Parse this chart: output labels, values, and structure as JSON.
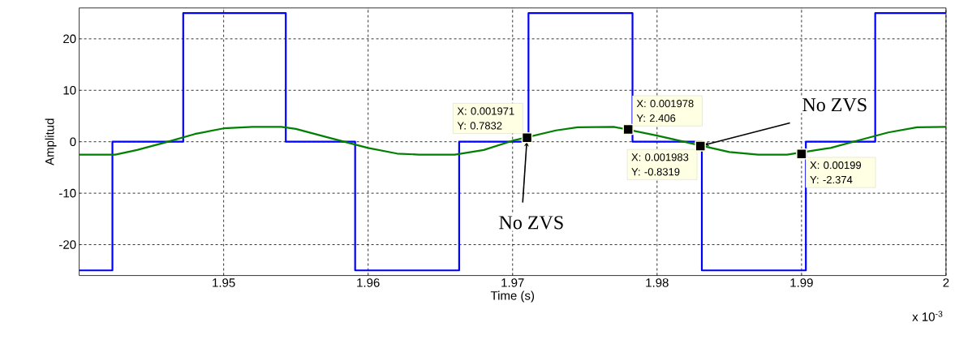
{
  "chart_data": {
    "type": "line",
    "xlabel": "Time (s)",
    "ylabel": "Amplitud",
    "xlim": [
      1.94,
      2.0
    ],
    "ylim": [
      -26,
      26
    ],
    "xticks": [
      1.95,
      1.96,
      1.97,
      1.98,
      1.99,
      2
    ],
    "yticks": [
      -20,
      -10,
      0,
      10,
      20
    ],
    "grid": true,
    "series": [
      {
        "type": "step",
        "color": "#0000ff",
        "x": [
          1.94,
          1.9423,
          1.9472,
          1.9543,
          1.9591,
          1.9663,
          1.9711,
          1.9783,
          1.9831,
          1.9903,
          1.9951,
          2.0
        ],
        "values": [
          -25,
          0,
          25,
          0,
          -25,
          0,
          25,
          0,
          -25,
          0,
          25,
          25
        ]
      },
      {
        "color": "#008000",
        "x": [
          1.94,
          1.9425,
          1.944,
          1.946,
          1.948,
          1.95,
          1.952,
          1.954,
          1.955,
          1.957,
          1.9585,
          1.96,
          1.962,
          1.9635,
          1.966,
          1.968,
          1.97,
          1.973,
          1.9745,
          1.977,
          1.98,
          1.985,
          1.987,
          1.989,
          1.992,
          1.994,
          1.996,
          1.998,
          2.0
        ],
        "values": [
          -2.5,
          -2.5,
          -1.6,
          -0.1,
          1.5,
          2.6,
          2.9,
          2.9,
          2.5,
          1.0,
          -0.1,
          -1.2,
          -2.3,
          -2.5,
          -2.5,
          -1.6,
          0.2,
          2.2,
          2.8,
          2.9,
          1.2,
          -2.0,
          -2.5,
          -2.5,
          -1.2,
          0.3,
          1.8,
          2.8,
          2.9
        ]
      },
      {
        "type": "scatter",
        "color": "#000000",
        "marker": "square",
        "x": [
          1.971,
          1.978,
          1.983,
          1.99
        ],
        "values": [
          0.7832,
          2.406,
          -0.8319,
          -2.374
        ]
      }
    ],
    "annotations": [
      {
        "text": "X: 0.001971 Y: 0.7832",
        "x": 1.971,
        "y": 0.7832
      },
      {
        "text": "X: 0.001978 Y: 2.406",
        "x": 1.978,
        "y": 2.406
      },
      {
        "text": "X: 0.001983 Y: -0.8319",
        "x": 1.983,
        "y": -0.8319
      },
      {
        "text": "X: 0.00199 Y: -2.374",
        "x": 1.99,
        "y": -2.374
      },
      {
        "text": "No ZVS",
        "x": 1.971,
        "y": 0.7832
      },
      {
        "text": "No ZVS",
        "x": 1.983,
        "y": -0.8319
      },
      "x 10$^{-3}$"
    ]
  }
}
